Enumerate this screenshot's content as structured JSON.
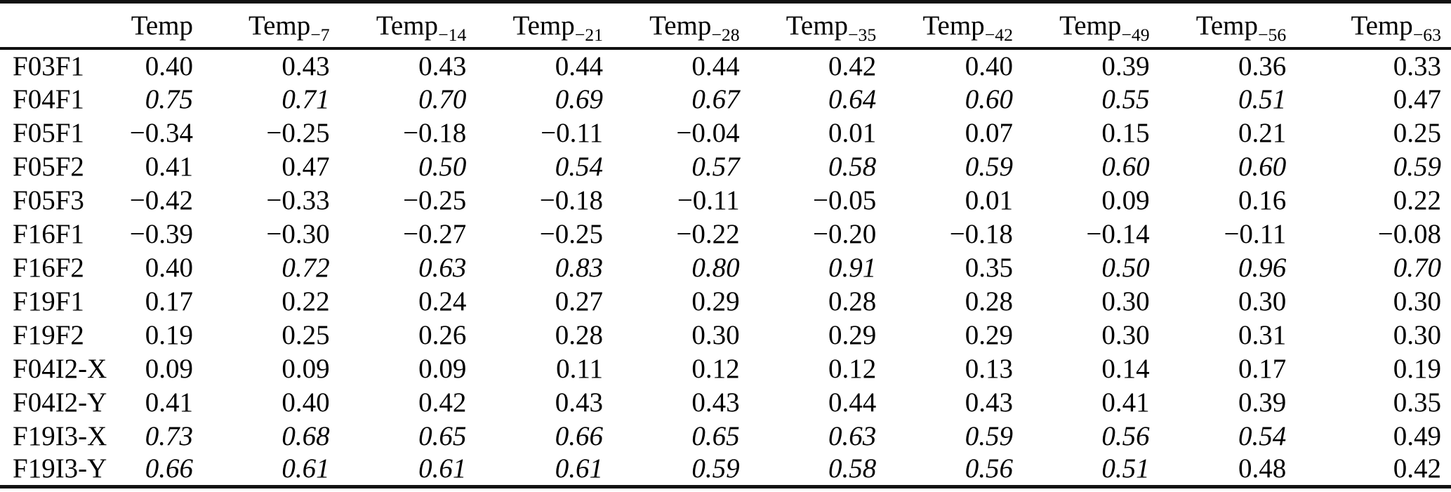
{
  "page": {
    "background": "#ffffff",
    "text_color": "#000000",
    "rule_color": "#111111"
  },
  "table": {
    "corner_label": "",
    "columns": [
      {
        "base": "Temp",
        "sub": ""
      },
      {
        "base": "Temp",
        "sub": "−7"
      },
      {
        "base": "Temp",
        "sub": "−14"
      },
      {
        "base": "Temp",
        "sub": "−21"
      },
      {
        "base": "Temp",
        "sub": "−28"
      },
      {
        "base": "Temp",
        "sub": "−35"
      },
      {
        "base": "Temp",
        "sub": "−42"
      },
      {
        "base": "Temp",
        "sub": "−49"
      },
      {
        "base": "Temp",
        "sub": "−56"
      },
      {
        "base": "Temp",
        "sub": "−63"
      }
    ],
    "rows": [
      {
        "label": "F03F1",
        "values": [
          "0.40",
          "0.43",
          "0.43",
          "0.44",
          "0.44",
          "0.42",
          "0.40",
          "0.39",
          "0.36",
          "0.33"
        ],
        "italics": [
          0,
          0,
          0,
          0,
          0,
          0,
          0,
          0,
          0,
          0
        ]
      },
      {
        "label": "F04F1",
        "values": [
          "0.75",
          "0.71",
          "0.70",
          "0.69",
          "0.67",
          "0.64",
          "0.60",
          "0.55",
          "0.51",
          "0.47"
        ],
        "italics": [
          1,
          1,
          1,
          1,
          1,
          1,
          1,
          1,
          1,
          0
        ]
      },
      {
        "label": "F05F1",
        "values": [
          "−0.34",
          "−0.25",
          "−0.18",
          "−0.11",
          "−0.04",
          "0.01",
          "0.07",
          "0.15",
          "0.21",
          "0.25"
        ],
        "italics": [
          0,
          0,
          0,
          0,
          0,
          0,
          0,
          0,
          0,
          0
        ]
      },
      {
        "label": "F05F2",
        "values": [
          "0.41",
          "0.47",
          "0.50",
          "0.54",
          "0.57",
          "0.58",
          "0.59",
          "0.60",
          "0.60",
          "0.59"
        ],
        "italics": [
          0,
          0,
          1,
          1,
          1,
          1,
          1,
          1,
          1,
          1
        ]
      },
      {
        "label": "F05F3",
        "values": [
          "−0.42",
          "−0.33",
          "−0.25",
          "−0.18",
          "−0.11",
          "−0.05",
          "0.01",
          "0.09",
          "0.16",
          "0.22"
        ],
        "italics": [
          0,
          0,
          0,
          0,
          0,
          0,
          0,
          0,
          0,
          0
        ]
      },
      {
        "label": "F16F1",
        "values": [
          "−0.39",
          "−0.30",
          "−0.27",
          "−0.25",
          "−0.22",
          "−0.20",
          "−0.18",
          "−0.14",
          "−0.11",
          "−0.08"
        ],
        "italics": [
          0,
          0,
          0,
          0,
          0,
          0,
          0,
          0,
          0,
          0
        ]
      },
      {
        "label": "F16F2",
        "values": [
          "0.40",
          "0.72",
          "0.63",
          "0.83",
          "0.80",
          "0.91",
          "0.35",
          "0.50",
          "0.96",
          "0.70"
        ],
        "italics": [
          0,
          1,
          1,
          1,
          1,
          1,
          0,
          1,
          1,
          1
        ]
      },
      {
        "label": "F19F1",
        "values": [
          "0.17",
          "0.22",
          "0.24",
          "0.27",
          "0.29",
          "0.28",
          "0.28",
          "0.30",
          "0.30",
          "0.30"
        ],
        "italics": [
          0,
          0,
          0,
          0,
          0,
          0,
          0,
          0,
          0,
          0
        ]
      },
      {
        "label": "F19F2",
        "values": [
          "0.19",
          "0.25",
          "0.26",
          "0.28",
          "0.30",
          "0.29",
          "0.29",
          "0.30",
          "0.31",
          "0.30"
        ],
        "italics": [
          0,
          0,
          0,
          0,
          0,
          0,
          0,
          0,
          0,
          0
        ]
      },
      {
        "label": "F04I2-X",
        "values": [
          "0.09",
          "0.09",
          "0.09",
          "0.11",
          "0.12",
          "0.12",
          "0.13",
          "0.14",
          "0.17",
          "0.19"
        ],
        "italics": [
          0,
          0,
          0,
          0,
          0,
          0,
          0,
          0,
          0,
          0
        ]
      },
      {
        "label": "F04I2-Y",
        "values": [
          "0.41",
          "0.40",
          "0.42",
          "0.43",
          "0.43",
          "0.44",
          "0.43",
          "0.41",
          "0.39",
          "0.35"
        ],
        "italics": [
          0,
          0,
          0,
          0,
          0,
          0,
          0,
          0,
          0,
          0
        ]
      },
      {
        "label": "F19I3-X",
        "values": [
          "0.73",
          "0.68",
          "0.65",
          "0.66",
          "0.65",
          "0.63",
          "0.59",
          "0.56",
          "0.54",
          "0.49"
        ],
        "italics": [
          1,
          1,
          1,
          1,
          1,
          1,
          1,
          1,
          1,
          0
        ]
      },
      {
        "label": "F19I3-Y",
        "values": [
          "0.66",
          "0.61",
          "0.61",
          "0.61",
          "0.59",
          "0.58",
          "0.56",
          "0.51",
          "0.48",
          "0.42"
        ],
        "italics": [
          1,
          1,
          1,
          1,
          1,
          1,
          1,
          1,
          0,
          0
        ]
      }
    ]
  }
}
